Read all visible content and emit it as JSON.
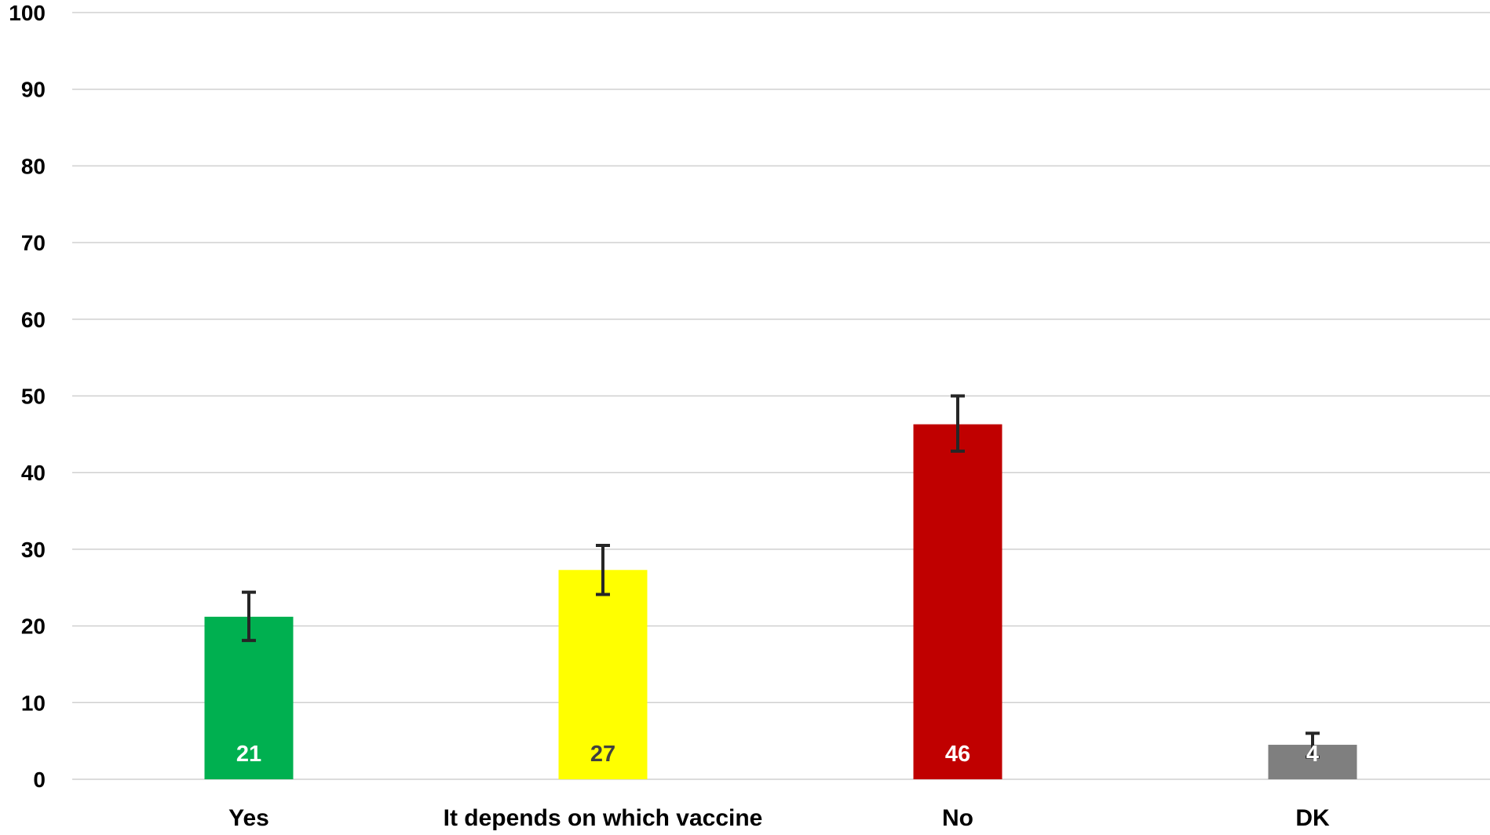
{
  "chart_data": {
    "type": "bar",
    "title": "",
    "xlabel": "",
    "ylabel": "",
    "ylim": [
      0,
      100
    ],
    "yticks": [
      0,
      10,
      20,
      30,
      40,
      50,
      60,
      70,
      80,
      90,
      100
    ],
    "grid": true,
    "legend": "none",
    "categories": [
      "Yes",
      "It depends on which vaccine",
      "No",
      "DK"
    ],
    "values": [
      21.2,
      27.3,
      46.3,
      4.5
    ],
    "data_labels": [
      "21",
      "27",
      "46",
      "4"
    ],
    "error_low": [
      18.1,
      24.1,
      42.8,
      2.9
    ],
    "error_high": [
      24.4,
      30.5,
      50.0,
      6.0
    ],
    "colors": [
      "#00b050",
      "#ffff00",
      "#c00000",
      "#7f7f7f"
    ],
    "label_colors": [
      "#ffffff",
      "#404040",
      "#ffffff",
      "#ffffff"
    ],
    "error_color": "#262626",
    "grid_color": "#d0d0d0"
  }
}
